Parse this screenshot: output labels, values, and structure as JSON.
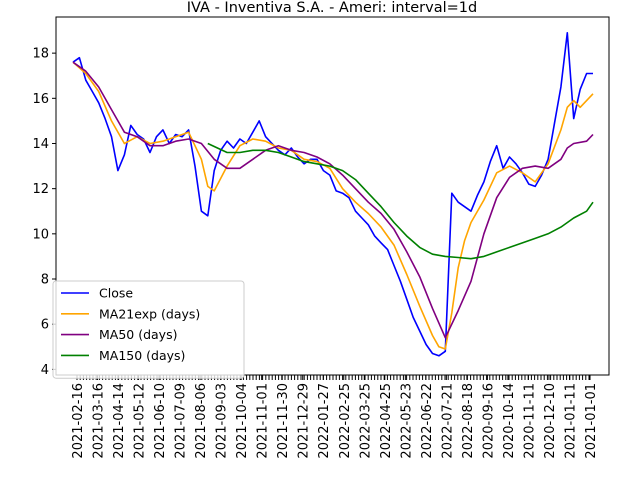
{
  "chart_data": {
    "type": "line",
    "title": "IVA - Inventiva S.A. - Ameri: interval=1d",
    "xlabel": "",
    "ylabel": "",
    "ylim": [
      3.75,
      19.6
    ],
    "y_ticks": [
      4,
      6,
      8,
      10,
      12,
      14,
      16,
      18
    ],
    "x_tick_labels": [
      "2021-02-16",
      "2021-03-16",
      "2021-04-14",
      "2021-05-12",
      "2021-06-10",
      "2021-07-09",
      "2021-08-06",
      "2021-09-03",
      "2021-10-04",
      "2021-11-01",
      "2021-11-30",
      "2021-12-29",
      "2022-01-27",
      "2022-02-25",
      "2022-03-25",
      "2022-04-25",
      "2022-05-23",
      "2022-06-22",
      "2022-07-21",
      "2022-08-18",
      "2020-09-16",
      "2020-10-14",
      "2020-11-11",
      "2020-12-10",
      "2021-01-11",
      "2021-01-01"
    ],
    "grid": false,
    "legend_position": "lower-left",
    "series": [
      {
        "name": "Close",
        "color": "#0000ff",
        "points": [
          [
            0,
            17.6
          ],
          [
            1,
            17.8
          ],
          [
            2,
            16.8
          ],
          [
            3,
            16.3
          ],
          [
            4,
            15.8
          ],
          [
            5,
            15.1
          ],
          [
            6,
            14.3
          ],
          [
            7,
            12.8
          ],
          [
            8,
            13.5
          ],
          [
            9,
            14.8
          ],
          [
            10,
            14.4
          ],
          [
            11,
            14.2
          ],
          [
            12,
            13.6
          ],
          [
            13,
            14.3
          ],
          [
            14,
            14.6
          ],
          [
            15,
            14.0
          ],
          [
            16,
            14.4
          ],
          [
            17,
            14.3
          ],
          [
            18,
            14.6
          ],
          [
            19,
            13.0
          ],
          [
            20,
            11.0
          ],
          [
            21,
            10.8
          ],
          [
            22,
            12.8
          ],
          [
            23,
            13.7
          ],
          [
            24,
            14.1
          ],
          [
            25,
            13.8
          ],
          [
            26,
            14.2
          ],
          [
            27,
            14.0
          ],
          [
            28,
            14.5
          ],
          [
            29,
            15.0
          ],
          [
            30,
            14.3
          ],
          [
            31,
            14.0
          ],
          [
            32,
            13.7
          ],
          [
            33,
            13.5
          ],
          [
            34,
            13.8
          ],
          [
            35,
            13.4
          ],
          [
            36,
            13.1
          ],
          [
            37,
            13.3
          ],
          [
            38,
            13.3
          ],
          [
            39,
            12.8
          ],
          [
            40,
            12.6
          ],
          [
            41,
            11.9
          ],
          [
            42,
            11.8
          ],
          [
            43,
            11.6
          ],
          [
            44,
            11.0
          ],
          [
            45,
            10.7
          ],
          [
            46,
            10.4
          ],
          [
            47,
            9.9
          ],
          [
            48,
            9.6
          ],
          [
            49,
            9.3
          ],
          [
            50,
            8.6
          ],
          [
            51,
            7.9
          ],
          [
            52,
            7.1
          ],
          [
            53,
            6.3
          ],
          [
            54,
            5.7
          ],
          [
            55,
            5.1
          ],
          [
            56,
            4.7
          ],
          [
            57,
            4.6
          ],
          [
            58,
            4.8
          ],
          [
            59,
            11.8
          ],
          [
            60,
            11.4
          ],
          [
            61,
            11.2
          ],
          [
            62,
            11.0
          ],
          [
            63,
            11.7
          ],
          [
            64,
            12.3
          ],
          [
            65,
            13.2
          ],
          [
            66,
            13.9
          ],
          [
            67,
            12.9
          ],
          [
            68,
            13.4
          ],
          [
            69,
            13.1
          ],
          [
            70,
            12.7
          ],
          [
            71,
            12.2
          ],
          [
            72,
            12.1
          ],
          [
            73,
            12.6
          ],
          [
            74,
            13.3
          ],
          [
            75,
            14.9
          ],
          [
            76,
            16.5
          ],
          [
            77,
            18.9
          ],
          [
            78,
            15.1
          ],
          [
            79,
            16.4
          ],
          [
            80,
            17.1
          ],
          [
            81,
            17.1
          ]
        ]
      },
      {
        "name": "MA21exp (days)",
        "color": "#ffa500",
        "points": [
          [
            0,
            17.6
          ],
          [
            2,
            17.1
          ],
          [
            4,
            16.3
          ],
          [
            6,
            15.0
          ],
          [
            8,
            14.0
          ],
          [
            10,
            14.3
          ],
          [
            12,
            14.0
          ],
          [
            14,
            14.1
          ],
          [
            16,
            14.3
          ],
          [
            18,
            14.5
          ],
          [
            20,
            13.3
          ],
          [
            21,
            12.1
          ],
          [
            22,
            11.9
          ],
          [
            24,
            13.0
          ],
          [
            26,
            13.9
          ],
          [
            28,
            14.2
          ],
          [
            30,
            14.1
          ],
          [
            32,
            13.8
          ],
          [
            34,
            13.7
          ],
          [
            36,
            13.3
          ],
          [
            38,
            13.2
          ],
          [
            40,
            12.9
          ],
          [
            42,
            12.0
          ],
          [
            44,
            11.4
          ],
          [
            46,
            10.9
          ],
          [
            48,
            10.3
          ],
          [
            50,
            9.5
          ],
          [
            52,
            8.2
          ],
          [
            54,
            6.8
          ],
          [
            56,
            5.5
          ],
          [
            57,
            5.0
          ],
          [
            58,
            4.9
          ],
          [
            59,
            6.5
          ],
          [
            60,
            8.5
          ],
          [
            61,
            9.7
          ],
          [
            62,
            10.5
          ],
          [
            64,
            11.5
          ],
          [
            66,
            12.7
          ],
          [
            68,
            13.0
          ],
          [
            70,
            12.7
          ],
          [
            72,
            12.3
          ],
          [
            74,
            13.1
          ],
          [
            76,
            14.6
          ],
          [
            77,
            15.6
          ],
          [
            78,
            15.9
          ],
          [
            79,
            15.6
          ],
          [
            80,
            15.9
          ],
          [
            81,
            16.2
          ]
        ]
      },
      {
        "name": "MA50 (days)",
        "color": "#800080",
        "points": [
          [
            0,
            17.6
          ],
          [
            2,
            17.2
          ],
          [
            4,
            16.5
          ],
          [
            6,
            15.5
          ],
          [
            8,
            14.5
          ],
          [
            10,
            14.3
          ],
          [
            12,
            13.9
          ],
          [
            14,
            13.9
          ],
          [
            16,
            14.1
          ],
          [
            18,
            14.2
          ],
          [
            20,
            14.0
          ],
          [
            22,
            13.3
          ],
          [
            24,
            12.9
          ],
          [
            26,
            12.9
          ],
          [
            28,
            13.3
          ],
          [
            30,
            13.7
          ],
          [
            32,
            13.9
          ],
          [
            34,
            13.7
          ],
          [
            36,
            13.6
          ],
          [
            38,
            13.4
          ],
          [
            40,
            13.1
          ],
          [
            42,
            12.6
          ],
          [
            44,
            12.0
          ],
          [
            46,
            11.4
          ],
          [
            48,
            10.9
          ],
          [
            50,
            10.2
          ],
          [
            52,
            9.2
          ],
          [
            54,
            8.1
          ],
          [
            56,
            6.7
          ],
          [
            58,
            5.4
          ],
          [
            60,
            6.6
          ],
          [
            62,
            7.9
          ],
          [
            64,
            10.0
          ],
          [
            66,
            11.6
          ],
          [
            68,
            12.5
          ],
          [
            70,
            12.9
          ],
          [
            72,
            13.0
          ],
          [
            74,
            12.9
          ],
          [
            76,
            13.3
          ],
          [
            77,
            13.8
          ],
          [
            78,
            14.0
          ],
          [
            80,
            14.1
          ],
          [
            81,
            14.4
          ]
        ]
      },
      {
        "name": "MA150 (days)",
        "color": "#008000",
        "points": [
          [
            21,
            14.0
          ],
          [
            24,
            13.6
          ],
          [
            26,
            13.6
          ],
          [
            28,
            13.7
          ],
          [
            30,
            13.7
          ],
          [
            32,
            13.6
          ],
          [
            34,
            13.4
          ],
          [
            36,
            13.2
          ],
          [
            38,
            13.1
          ],
          [
            40,
            13.0
          ],
          [
            42,
            12.8
          ],
          [
            44,
            12.4
          ],
          [
            46,
            11.8
          ],
          [
            48,
            11.2
          ],
          [
            50,
            10.5
          ],
          [
            52,
            9.9
          ],
          [
            54,
            9.4
          ],
          [
            56,
            9.1
          ],
          [
            58,
            9.0
          ],
          [
            60,
            8.95
          ],
          [
            62,
            8.9
          ],
          [
            64,
            9.0
          ],
          [
            66,
            9.2
          ],
          [
            68,
            9.4
          ],
          [
            70,
            9.6
          ],
          [
            72,
            9.8
          ],
          [
            74,
            10.0
          ],
          [
            76,
            10.3
          ],
          [
            78,
            10.7
          ],
          [
            80,
            11.0
          ],
          [
            81,
            11.4
          ]
        ]
      }
    ]
  }
}
